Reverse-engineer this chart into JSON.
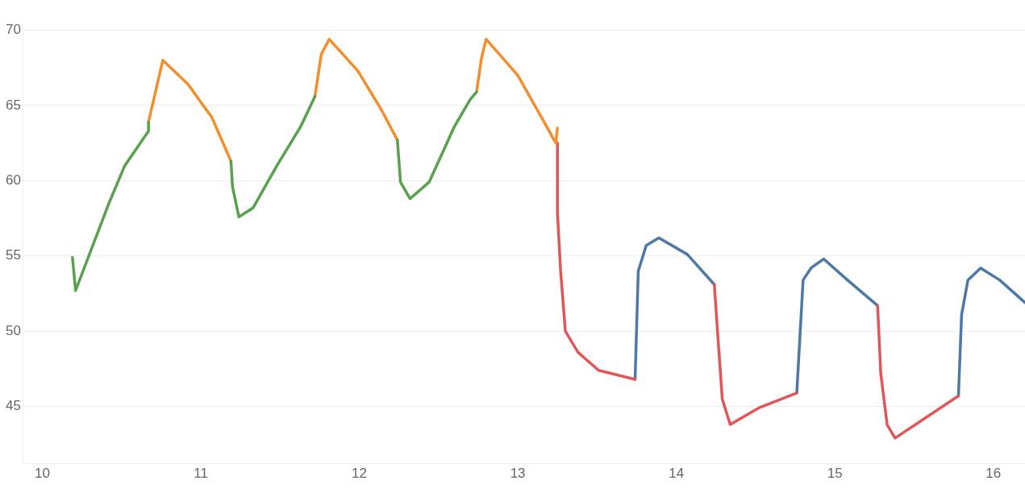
{
  "chart_data": {
    "type": "line",
    "xlim": [
      9.88,
      16.2
    ],
    "xticks": [
      10,
      11,
      12,
      13,
      14,
      15,
      16
    ],
    "ylim": [
      41.2,
      70.4
    ],
    "yticks": [
      45,
      50,
      55,
      60,
      65,
      70
    ],
    "grid": "y",
    "legend": false,
    "marker": "none",
    "line_style": "solid",
    "series": [
      {
        "color": "#59a14f",
        "x": [
          10.19,
          10.21,
          10.42,
          10.52,
          10.67,
          10.67,
          10.7,
          11.19,
          11.2,
          11.24,
          11.33,
          11.48,
          11.63,
          11.72,
          11.74,
          12.24,
          12.26,
          12.32,
          12.44,
          12.6,
          12.7,
          12.74
        ],
        "values": [
          54.9,
          52.7,
          58.5,
          61.0,
          63.3,
          63.9,
          null,
          61.3,
          59.6,
          57.6,
          58.2,
          61.0,
          63.6,
          65.6,
          null,
          62.7,
          59.9,
          58.8,
          59.9,
          63.6,
          65.4,
          65.9
        ]
      },
      {
        "color": "#f28e2b",
        "x": [
          10.67,
          10.76,
          10.92,
          11.07,
          11.19,
          11.5,
          11.72,
          11.76,
          11.81,
          11.99,
          12.14,
          12.24,
          12.5,
          12.74,
          12.77,
          12.8,
          13.0,
          13.15,
          13.24,
          13.25
        ],
        "values": [
          63.9,
          68.0,
          66.4,
          64.2,
          61.3,
          null,
          65.6,
          68.4,
          69.4,
          67.3,
          64.7,
          62.7,
          null,
          65.9,
          68.1,
          69.4,
          67.0,
          64.2,
          62.5,
          63.5
        ]
      },
      {
        "color": "#e15759",
        "x": [
          13.25,
          13.25,
          13.27,
          13.3,
          13.38,
          13.51,
          13.74,
          14.0,
          14.24,
          14.26,
          14.29,
          14.34,
          14.52,
          14.76,
          15.0,
          15.27,
          15.29,
          15.33,
          15.38,
          15.58,
          15.78
        ],
        "values": [
          62.5,
          57.9,
          54.0,
          50.0,
          48.6,
          47.4,
          46.8,
          null,
          53.1,
          50.0,
          45.5,
          43.8,
          44.9,
          45.9,
          null,
          51.7,
          47.2,
          43.8,
          42.9,
          44.3,
          45.7
        ]
      },
      {
        "color": "#4e79a7",
        "x": [
          13.74,
          13.76,
          13.81,
          13.89,
          14.07,
          14.24,
          14.5,
          14.76,
          14.8,
          14.85,
          14.93,
          15.08,
          15.27,
          15.5,
          15.78,
          15.8,
          15.84,
          15.92,
          16.04,
          16.2
        ],
        "values": [
          46.8,
          54.0,
          55.7,
          56.2,
          55.1,
          53.1,
          null,
          45.9,
          53.4,
          54.2,
          54.8,
          53.4,
          51.7,
          null,
          45.7,
          51.1,
          53.4,
          54.2,
          53.4,
          51.9
        ]
      }
    ]
  }
}
